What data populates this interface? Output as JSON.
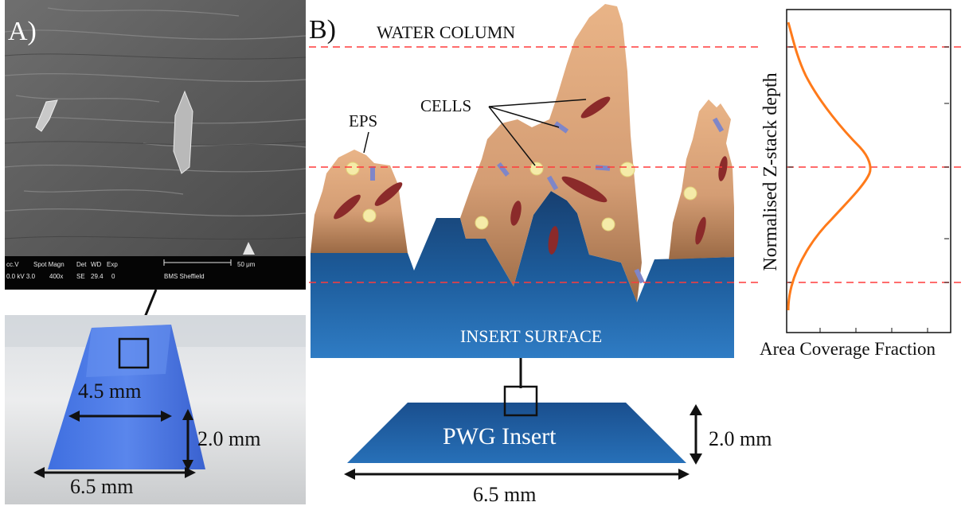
{
  "panel_a": {
    "label": "A)",
    "sem": {
      "info_row1": [
        "cc.V",
        "Spot Magn",
        "Det",
        "WD",
        "Exp"
      ],
      "info_row2": [
        "0.0 kV 3.0",
        "400x",
        "SE",
        "29.4",
        "0"
      ],
      "scale_label": "50 μm",
      "lab": "BMS Sheffield"
    },
    "photo": {
      "top_width": "4.5 mm",
      "height": "2.0 mm",
      "bottom_width": "6.5 mm"
    }
  },
  "panel_b": {
    "label": "B)",
    "water_column": "WATER COLUMN",
    "eps": "EPS",
    "cells": "CELLS",
    "insert_surface": "INSERT SURFACE",
    "insert_name": "PWG Insert",
    "height": "2.0 mm",
    "width": "6.5 mm"
  },
  "profile_plot": {
    "ylabel": "Normalised Z-stack depth",
    "xlabel": "Area Coverage Fraction"
  },
  "colors": {
    "eps": "#d9a077",
    "surface": "#1c5a9a",
    "cell_rod": "#8b2a2a",
    "cell_round": "#f3e9a6",
    "guide_line": "#ff3b3b",
    "profile": "#ff7a1a",
    "insert_blue": "#4a78d8"
  }
}
